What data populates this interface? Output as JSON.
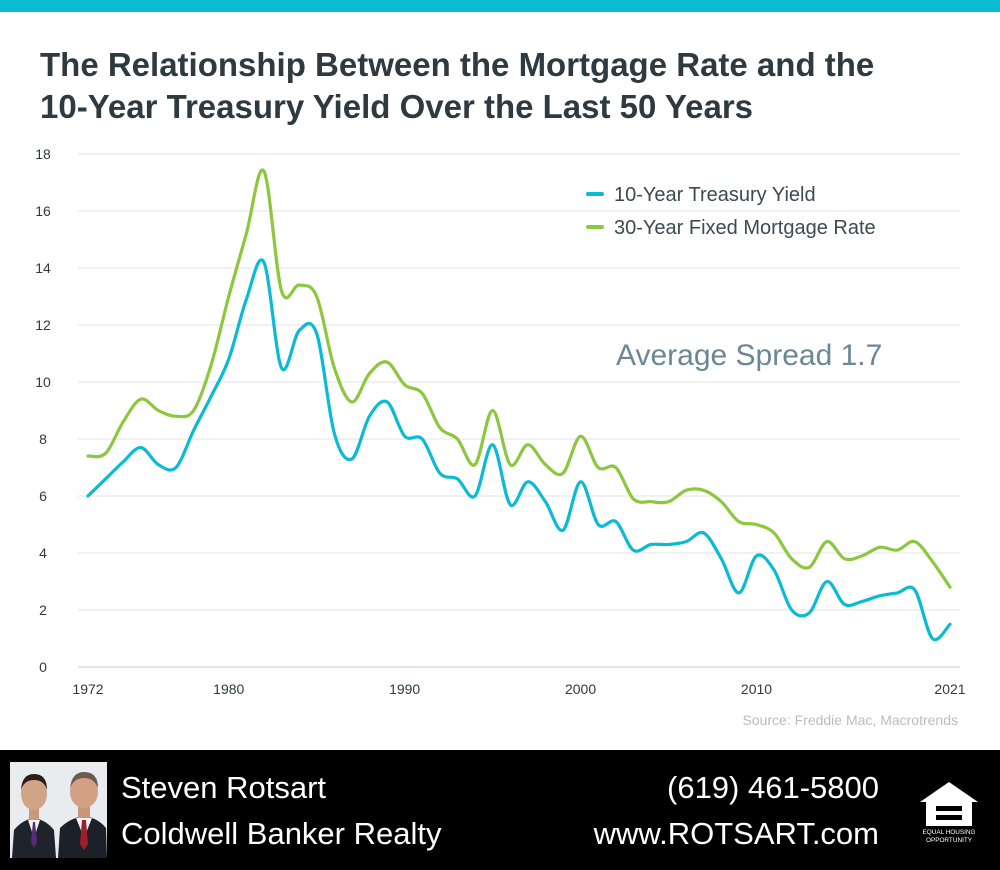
{
  "colors": {
    "accent_bar": "#0bbad3",
    "treasury": "#0bbad3",
    "mortgage": "#8dc63f",
    "title": "#2e3a3f",
    "annotation": "#6b8795",
    "footer_bg": "#000000"
  },
  "title_line1": "The Relationship Between the Mortgage Rate and the",
  "title_line2": "10-Year Treasury Yield Over the Last 50 Years",
  "chart_data": {
    "type": "line",
    "title": "The Relationship Between the Mortgage Rate and the 10-Year Treasury Yield Over the Last 50 Years",
    "xlabel": "",
    "ylabel": "",
    "x_ticks": [
      "1972",
      "1980",
      "1990",
      "2000",
      "2010",
      "2021"
    ],
    "y_ticks": [
      "0",
      "2",
      "4",
      "6",
      "8",
      "10",
      "12",
      "14",
      "16",
      "18"
    ],
    "xlim": [
      1972,
      2021
    ],
    "ylim": [
      0,
      18
    ],
    "grid": true,
    "legend_position": "top-right",
    "annotation": "Average Spread 1.7",
    "x": [
      1972,
      1973,
      1974,
      1975,
      1976,
      1977,
      1978,
      1979,
      1980,
      1981,
      1982,
      1983,
      1984,
      1985,
      1986,
      1987,
      1988,
      1989,
      1990,
      1991,
      1992,
      1993,
      1994,
      1995,
      1996,
      1997,
      1998,
      1999,
      2000,
      2001,
      2002,
      2003,
      2004,
      2005,
      2006,
      2007,
      2008,
      2009,
      2010,
      2011,
      2012,
      2013,
      2014,
      2015,
      2016,
      2017,
      2018,
      2019,
      2020,
      2021
    ],
    "series": [
      {
        "name": "10-Year Treasury Yield",
        "color": "#0bbad3",
        "values": [
          6.0,
          6.6,
          7.2,
          7.7,
          7.1,
          7.0,
          8.3,
          9.5,
          10.8,
          12.9,
          14.2,
          10.5,
          11.8,
          11.7,
          8.2,
          7.3,
          8.8,
          9.3,
          8.1,
          8.0,
          6.8,
          6.6,
          6.0,
          7.8,
          5.7,
          6.5,
          5.8,
          4.8,
          6.5,
          5.0,
          5.1,
          4.1,
          4.3,
          4.3,
          4.4,
          4.7,
          3.8,
          2.6,
          3.9,
          3.4,
          2.0,
          1.9,
          3.0,
          2.2,
          2.3,
          2.5,
          2.6,
          2.7,
          1.0,
          1.5
        ]
      },
      {
        "name": "30-Year Fixed Mortgage Rate",
        "color": "#8dc63f",
        "values": [
          7.4,
          7.5,
          8.6,
          9.4,
          9.0,
          8.8,
          9.0,
          10.6,
          13.0,
          15.2,
          17.4,
          13.2,
          13.4,
          13.0,
          10.5,
          9.3,
          10.3,
          10.7,
          9.9,
          9.6,
          8.4,
          8.0,
          7.1,
          9.0,
          7.1,
          7.8,
          7.1,
          6.8,
          8.1,
          7.0,
          7.0,
          5.9,
          5.8,
          5.8,
          6.2,
          6.2,
          5.8,
          5.1,
          5.0,
          4.7,
          3.8,
          3.5,
          4.4,
          3.8,
          3.9,
          4.2,
          4.1,
          4.4,
          3.7,
          2.8
        ]
      }
    ]
  },
  "source": "Source: Freddie Mac, Macrotrends",
  "footer": {
    "agent_name": "Steven Rotsart",
    "brokerage": "Coldwell Banker Realty",
    "phone": "(619) 461-5800",
    "website": "www.ROTSART.com",
    "eho_line1": "EQUAL HOUSING",
    "eho_line2": "OPPORTUNITY"
  }
}
